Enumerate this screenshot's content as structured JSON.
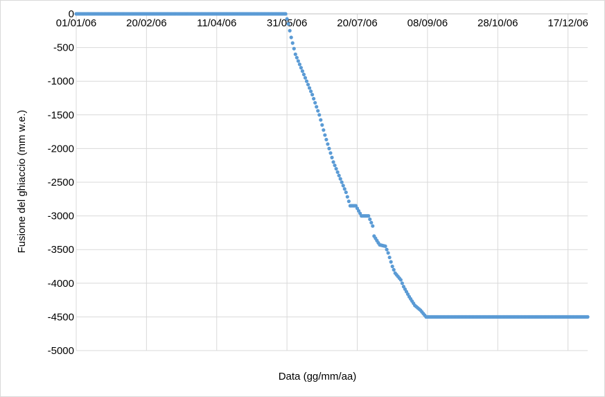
{
  "chart_data": {
    "type": "scatter",
    "xlabel": "Data (gg/mm/aa)",
    "ylabel": "Fusione del ghiaccio (mm w.e.)",
    "xlim": [
      "01/01/06",
      "31/12/06"
    ],
    "ylim": [
      -5000,
      0
    ],
    "y_ticks": [
      0,
      -500,
      -1000,
      -1500,
      -2000,
      -2500,
      -3000,
      -3500,
      -4000,
      -4500,
      -5000
    ],
    "x_ticks": [
      "01/01/06",
      "20/02/06",
      "11/04/06",
      "31/05/06",
      "20/07/06",
      "08/09/06",
      "28/10/06",
      "17/12/06"
    ],
    "x_axis_position": "top",
    "grid": true,
    "legend": "none",
    "color": "#5b9bd5",
    "series": [
      {
        "x": [
          "01/01/06",
          "30/05/06",
          "01/06/06",
          "03/06/06",
          "06/06/06",
          "10/06/06",
          "14/06/06",
          "18/06/06",
          "23/06/06",
          "27/06/06",
          "03/07/06",
          "09/07/06",
          "12/07/06",
          "15/07/06",
          "19/07/06",
          "23/07/06",
          "28/07/06",
          "31/07/06",
          "01/08/06",
          "04/08/06",
          "05/08/06",
          "09/08/06",
          "11/08/06",
          "14/08/06",
          "16/08/06",
          "20/08/06",
          "22/08/06",
          "26/08/06",
          "30/08/06",
          "03/09/06",
          "07/09/06",
          "11/09/06",
          "16/09/06",
          "23/09/06",
          "31/12/06"
        ],
        "y": [
          0,
          0,
          -150,
          -350,
          -600,
          -800,
          -1000,
          -1200,
          -1500,
          -1800,
          -2200,
          -2500,
          -2650,
          -2850,
          -2850,
          -3000,
          -3000,
          -3150,
          -3300,
          -3400,
          -3430,
          -3450,
          -3550,
          -3750,
          -3850,
          -3950,
          -4050,
          -4200,
          -4330,
          -4400,
          -4500,
          -4500,
          -4500,
          -4500,
          -4500
        ]
      }
    ]
  }
}
